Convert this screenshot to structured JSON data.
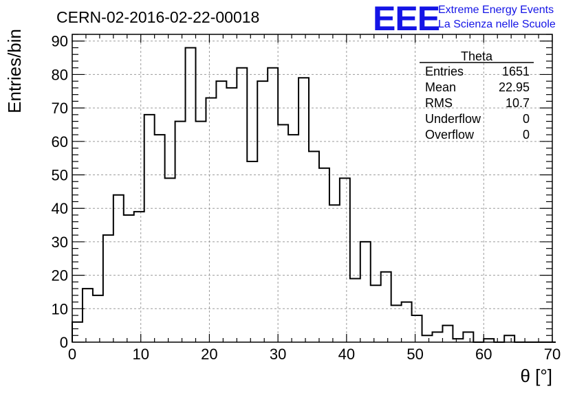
{
  "header": {
    "run_title": "CERN-02-2016-02-22-00018",
    "logo_mark": "EEE",
    "logo_line1": "Extreme Energy Events",
    "logo_line2": "La Scienza nelle Scuole",
    "brand_color": "#1414e6"
  },
  "stats_box": {
    "title": "Theta",
    "rows": [
      {
        "label": "Entries",
        "value": "1651"
      },
      {
        "label": "Mean",
        "value": "22.95"
      },
      {
        "label": "RMS",
        "value": "10.7"
      },
      {
        "label": "Underflow",
        "value": "0"
      },
      {
        "label": "Overflow",
        "value": "0"
      }
    ]
  },
  "chart_data": {
    "type": "bar",
    "style": "step-histogram",
    "xlabel": "θ [°]",
    "ylabel": "Entries/bin",
    "xlim": [
      0,
      70
    ],
    "ylim": [
      0,
      92
    ],
    "grid": true,
    "bin_width": 1.5,
    "bin_start": 0,
    "xticks": [
      0,
      10,
      20,
      30,
      40,
      50,
      60,
      70
    ],
    "yticks": [
      0,
      10,
      20,
      30,
      40,
      50,
      60,
      70,
      80,
      90
    ],
    "values": [
      6,
      16,
      14,
      32,
      44,
      38,
      39,
      68,
      62,
      49,
      66,
      88,
      66,
      73,
      78,
      76,
      82,
      54,
      78,
      82,
      65,
      62,
      79,
      57,
      52,
      41,
      49,
      19,
      30,
      17,
      21,
      11,
      12,
      8,
      2,
      3,
      5,
      1,
      3,
      0,
      1,
      0,
      2,
      0,
      0,
      0,
      0
    ]
  }
}
